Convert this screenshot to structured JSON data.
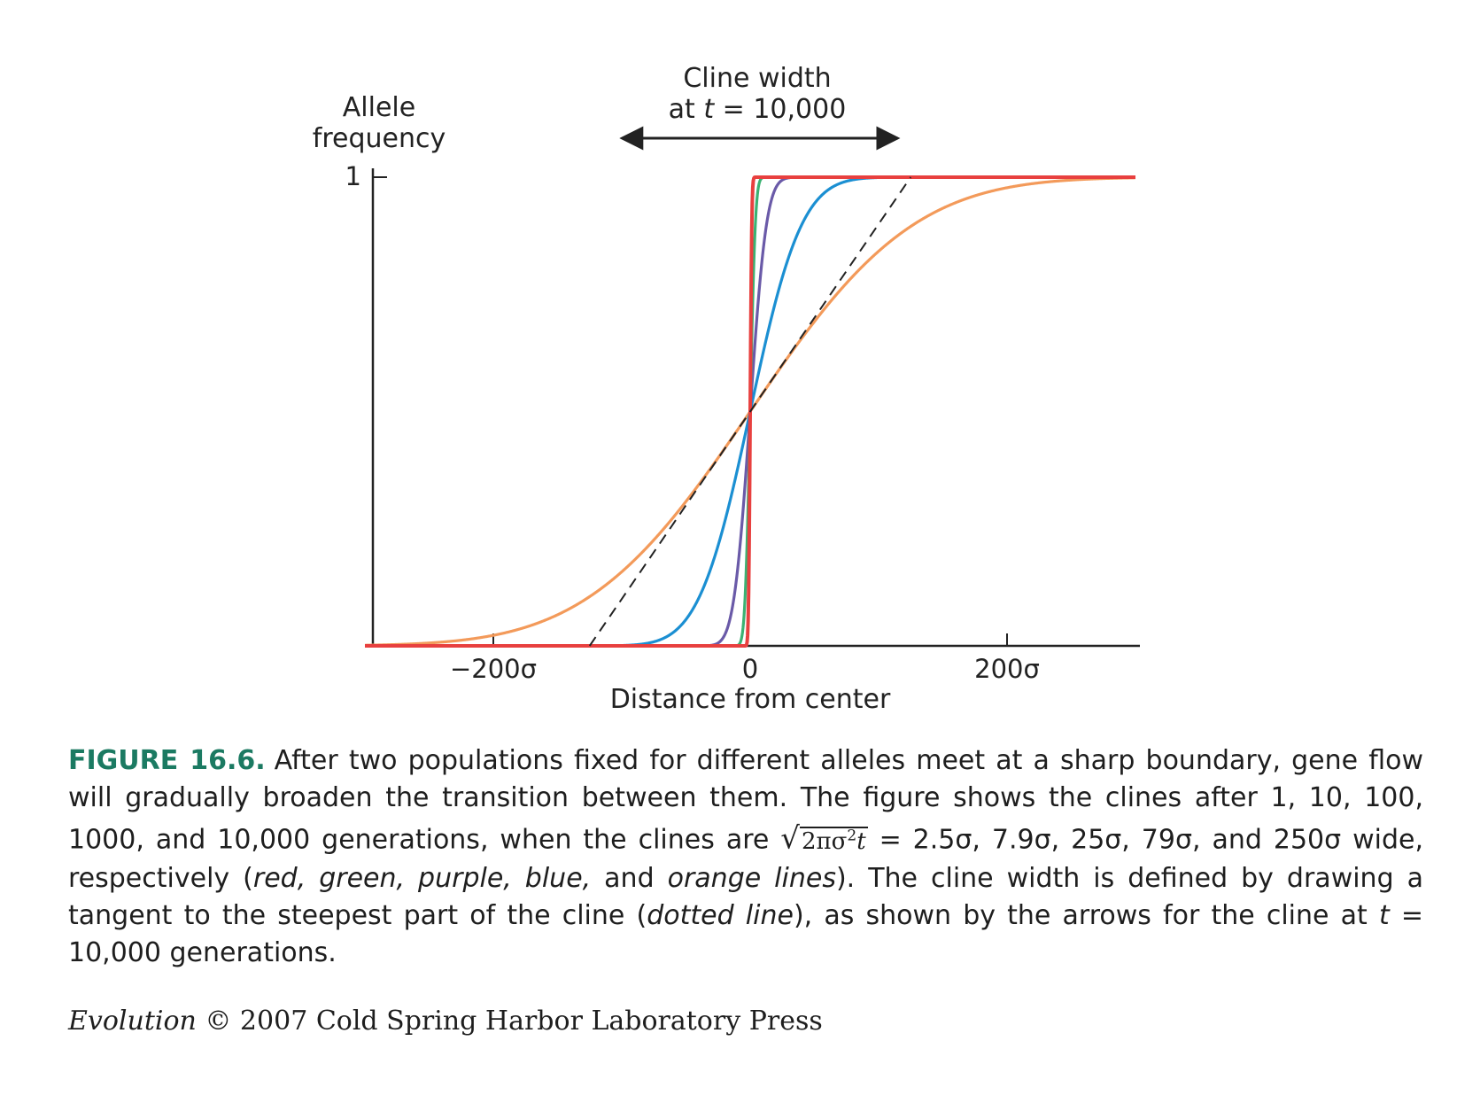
{
  "chart_data": {
    "type": "line",
    "ylabel_line1": "Allele",
    "ylabel_line2": "frequency",
    "y_tick_label": "1",
    "xlabel": "Distance from center",
    "x_tick_labels": [
      "−200σ",
      "0",
      "200σ"
    ],
    "x_ticks": [
      -200,
      0,
      200
    ],
    "xlim": [
      -300,
      300
    ],
    "ylim": [
      0,
      1
    ],
    "annotation_line1": "Cline width",
    "annotation_line2_prefix": "at ",
    "annotation_line2_var": "t",
    "annotation_line2_suffix": " = 10,000",
    "arrow_span": [
      -100,
      115
    ],
    "series": [
      {
        "key": "red",
        "generations": 1,
        "width": 2.5,
        "color": "#e8403f"
      },
      {
        "key": "green",
        "generations": 10,
        "width": 7.9,
        "color": "#3bb273"
      },
      {
        "key": "purple",
        "generations": 100,
        "width": 25,
        "color": "#6a5aa8"
      },
      {
        "key": "blue",
        "generations": 1000,
        "width": 79,
        "color": "#1b8fd2"
      },
      {
        "key": "orange",
        "generations": 10000,
        "width": 250,
        "color": "#f39a5a"
      }
    ],
    "tangent": {
      "style": "dashed",
      "color": "#222222",
      "x_range": [
        -125,
        125
      ]
    }
  },
  "caption": {
    "label": "FIGURE 16.6.",
    "t1": "After two populations fixed for different alleles meet at a sharp boundary, gene flow will gradually broaden the transition between them. The figure shows the clines after 1, 10, 100, 1000, and 10,000 generations, when the clines are ",
    "eq_radicand": "2πσ",
    "eq_exp": "2",
    "eq_var": "t",
    "t2": " = 2.5σ, 7.9σ, 25σ, 79σ, and 250σ wide, respectively (",
    "t2_italic": "red, green, purple, blue,",
    "t3": " and ",
    "t3_italic": "orange lines",
    "t4": "). The cline width is defined by drawing a tangent to the steepest part of the cline (",
    "t4_italic": "dotted line",
    "t5": "), as shown by the arrows for the cline at ",
    "t5_var": "t",
    "t6": " = 10,000 generations."
  },
  "credit": {
    "title": "Evolution",
    "text": " © 2007 Cold Spring Harbor Laboratory Press"
  }
}
